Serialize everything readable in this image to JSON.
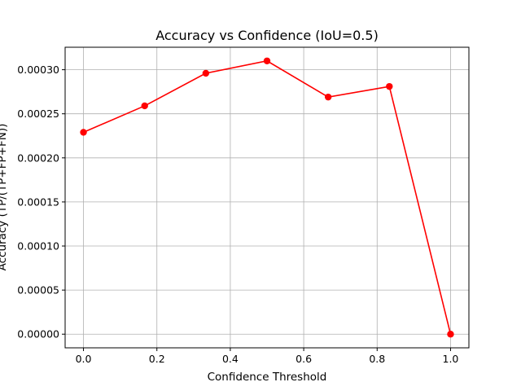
{
  "chart_data": {
    "type": "line",
    "title": "Accuracy vs Confidence (IoU=0.5)",
    "xlabel": "Confidence Threshold",
    "ylabel": "Accuracy (TP/(TP+FP+FN))",
    "xlim": [
      -0.05,
      1.05
    ],
    "ylim": [
      -1.55e-05,
      0.0003255
    ],
    "xticks": [
      0.0,
      0.2,
      0.4,
      0.6,
      0.8,
      1.0
    ],
    "xtick_labels": [
      "0.0",
      "0.2",
      "0.4",
      "0.6",
      "0.8",
      "1.0"
    ],
    "yticks": [
      0.0,
      5e-05,
      0.0001,
      0.00015,
      0.0002,
      0.00025,
      0.0003
    ],
    "ytick_labels": [
      "0.00000",
      "0.00005",
      "0.00010",
      "0.00015",
      "0.00020",
      "0.00025",
      "0.00030"
    ],
    "grid": true,
    "series": [
      {
        "x": [
          0.0,
          0.1667,
          0.3333,
          0.5,
          0.6667,
          0.8333,
          1.0
        ],
        "y": [
          0.000229,
          0.000259,
          0.000296,
          0.00031,
          0.000269,
          0.000281,
          0.0
        ],
        "color": "#ff0000",
        "marker": "circle"
      }
    ]
  }
}
